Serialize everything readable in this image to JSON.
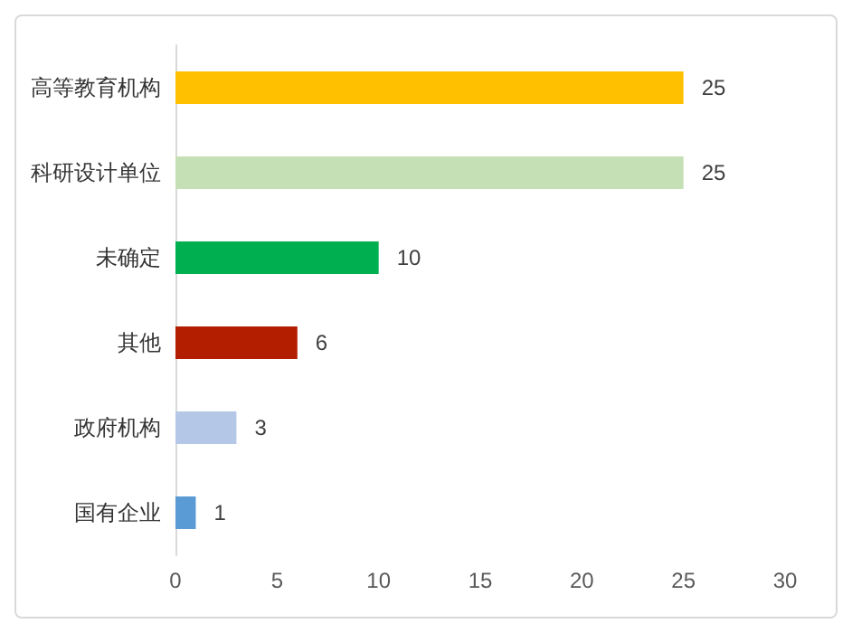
{
  "chart_data": {
    "type": "bar",
    "orientation": "horizontal",
    "categories": [
      "高等教育机构",
      "科研设计单位",
      "未确定",
      "其他",
      "政府机构",
      "国有企业"
    ],
    "values": [
      25,
      25,
      10,
      6,
      3,
      1
    ],
    "colors": [
      "#ffc000",
      "#c5e0b4",
      "#00b050",
      "#b41e00",
      "#b4c7e7",
      "#5b9bd5"
    ],
    "xlim": [
      0,
      30
    ],
    "xticks": [
      0,
      5,
      10,
      15,
      20,
      25,
      30
    ],
    "grid": false,
    "data_labels": true
  }
}
